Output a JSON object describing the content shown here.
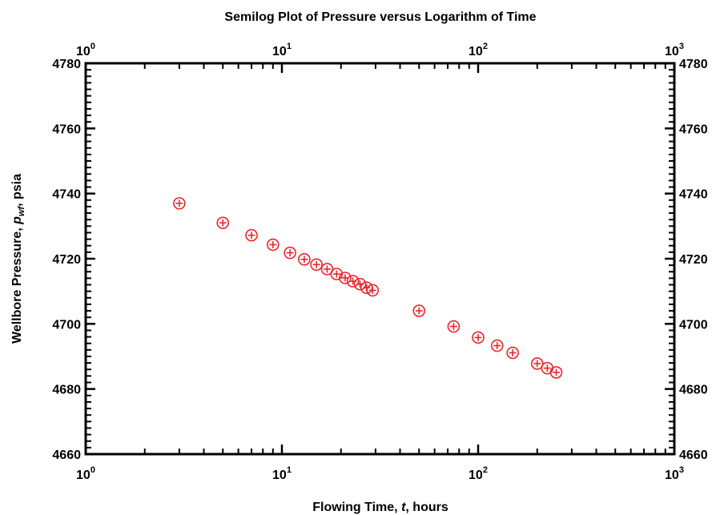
{
  "chart_data": {
    "type": "scatter",
    "title": "Semilog Plot of Pressure versus Logarithm of Time",
    "xlabel": {
      "prefix": "Flowing Time, ",
      "italic": "t",
      "suffix": ", hours"
    },
    "ylabel": {
      "prefix": "Wellbore Pressure, ",
      "italic": "p",
      "sub": "wf",
      "suffix": ", psia"
    },
    "x_scale": "log",
    "xlim": [
      1,
      1000
    ],
    "ylim": [
      4660,
      4780
    ],
    "x_ticks": [
      {
        "base": "10",
        "exp": "0"
      },
      {
        "base": "10",
        "exp": "1"
      },
      {
        "base": "10",
        "exp": "2"
      },
      {
        "base": "10",
        "exp": "3"
      }
    ],
    "y_ticks": [
      "4660",
      "4680",
      "4700",
      "4720",
      "4740",
      "4760",
      "4780"
    ],
    "grid": false,
    "marker_color": "#e8262d",
    "points": [
      {
        "x": 3,
        "y": 4737
      },
      {
        "x": 5,
        "y": 4731
      },
      {
        "x": 7,
        "y": 4727.2
      },
      {
        "x": 9,
        "y": 4724.3
      },
      {
        "x": 11,
        "y": 4721.8
      },
      {
        "x": 13,
        "y": 4719.8
      },
      {
        "x": 15,
        "y": 4718.2
      },
      {
        "x": 17,
        "y": 4716.8
      },
      {
        "x": 19,
        "y": 4715.3
      },
      {
        "x": 21,
        "y": 4714.1
      },
      {
        "x": 23,
        "y": 4713.1
      },
      {
        "x": 25,
        "y": 4712.2
      },
      {
        "x": 27,
        "y": 4711.1
      },
      {
        "x": 29,
        "y": 4710.3
      },
      {
        "x": 50,
        "y": 4704
      },
      {
        "x": 75,
        "y": 4699.2
      },
      {
        "x": 100,
        "y": 4695.8
      },
      {
        "x": 125,
        "y": 4693.3
      },
      {
        "x": 150,
        "y": 4691.1
      },
      {
        "x": 200,
        "y": 4687.8
      },
      {
        "x": 225,
        "y": 4686.4
      },
      {
        "x": 250,
        "y": 4685.1
      }
    ]
  }
}
